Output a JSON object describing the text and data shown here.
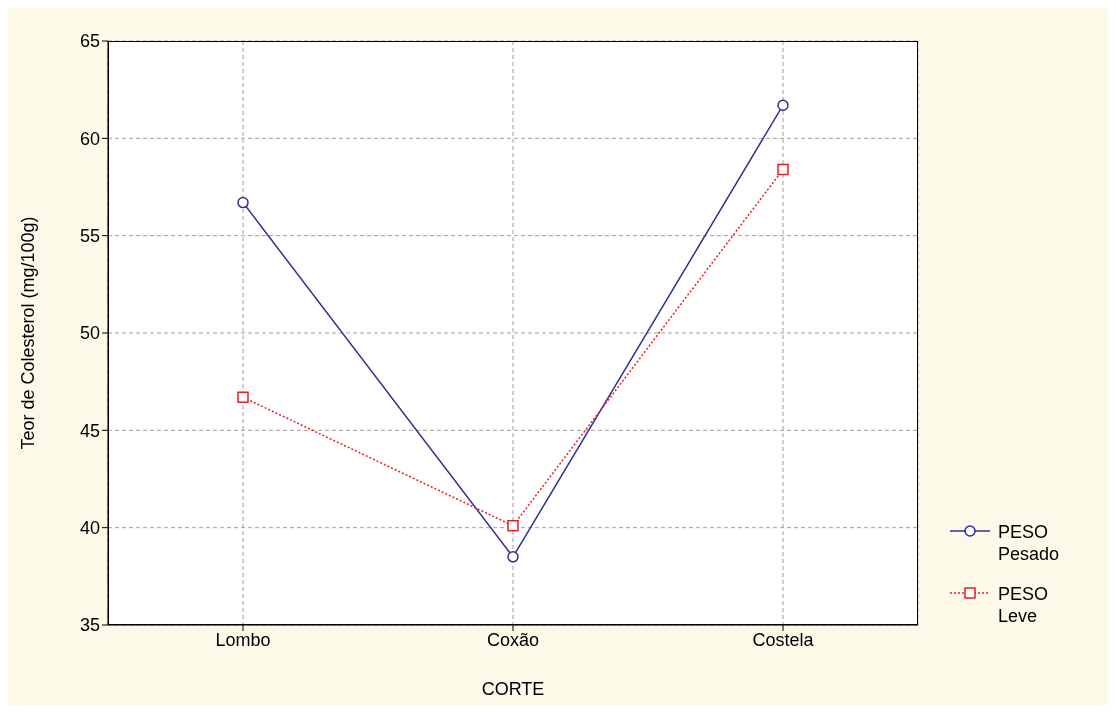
{
  "chart_data": {
    "type": "line",
    "xlabel": "CORTE",
    "ylabel": "Teor de Colesterol (mg/100g)",
    "categories": [
      "Lombo",
      "Coxão",
      "Costela"
    ],
    "series": [
      {
        "name": "PESO Pesado",
        "color": "#2e3192",
        "values": [
          56.7,
          38.5,
          61.7
        ],
        "marker": "circle",
        "line_style": "solid"
      },
      {
        "name": "PESO Leve",
        "color": "#ed1c24",
        "values": [
          46.7,
          40.1,
          58.4
        ],
        "marker": "square",
        "line_style": "dotted"
      }
    ],
    "ylim": [
      35,
      65
    ],
    "yticks": [
      35,
      40,
      45,
      50,
      55,
      60,
      65
    ],
    "grid": true,
    "legend": "right"
  }
}
